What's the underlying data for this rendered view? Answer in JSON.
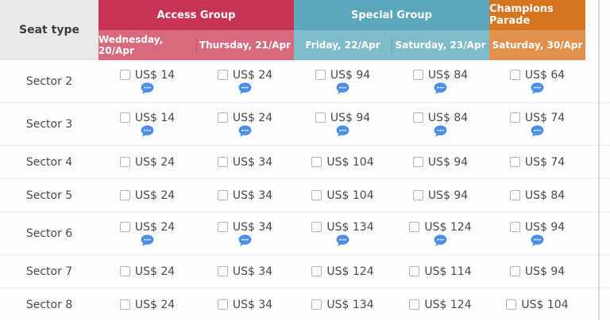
{
  "page": {
    "background": "#fdfdfd",
    "right_edge_line_color": "#dcdcdc"
  },
  "icons": {
    "comment_icon": "speech-bubble-ellipsis",
    "comment_icon_color": "#4a8ee8"
  },
  "table": {
    "seat_type_header": "Seat type",
    "seat_header_bg": "#e9e9e9",
    "text_color": "#4a4a4a",
    "groups": [
      {
        "label": "Access Group",
        "header_color": "#c73354",
        "subheader_color": "#d96a7e",
        "divider_color": "#c4516b",
        "dates": [
          "Wednesday, 20/Apr",
          "Thursday, 21/Apr"
        ]
      },
      {
        "label": "Special Group",
        "header_color": "#5ba7bc",
        "subheader_color": "#7fbccb",
        "divider_color": "#5f9fb3",
        "dates": [
          "Friday, 22/Apr",
          "Saturday, 23/Apr"
        ]
      },
      {
        "label": "Champions Parade",
        "header_color": "#d6751f",
        "subheader_color": "#e0914e",
        "dates": [
          "Saturday, 30/Apr"
        ]
      }
    ],
    "rows": [
      {
        "sector": "Sector 2",
        "prices": [
          "US$ 14",
          "US$ 24",
          "US$ 94",
          "US$ 84",
          "US$ 64"
        ],
        "note_icons": [
          true,
          true,
          true,
          true,
          true
        ]
      },
      {
        "sector": "Sector 3",
        "prices": [
          "US$ 14",
          "US$ 24",
          "US$ 94",
          "US$ 84",
          "US$ 74"
        ],
        "note_icons": [
          true,
          true,
          true,
          true,
          true
        ]
      },
      {
        "sector": "Sector 4",
        "prices": [
          "US$ 24",
          "US$ 34",
          "US$ 104",
          "US$ 94",
          "US$ 74"
        ],
        "note_icons": [
          false,
          false,
          false,
          false,
          false
        ]
      },
      {
        "sector": "Sector 5",
        "prices": [
          "US$ 24",
          "US$ 34",
          "US$ 104",
          "US$ 94",
          "US$ 84"
        ],
        "note_icons": [
          false,
          false,
          false,
          false,
          false
        ]
      },
      {
        "sector": "Sector 6",
        "prices": [
          "US$ 24",
          "US$ 34",
          "US$ 134",
          "US$ 124",
          "US$ 94"
        ],
        "note_icons": [
          true,
          true,
          true,
          true,
          true
        ]
      },
      {
        "sector": "Sector 7",
        "prices": [
          "US$ 24",
          "US$ 34",
          "US$ 124",
          "US$ 114",
          "US$ 94"
        ],
        "note_icons": [
          false,
          false,
          false,
          false,
          false
        ]
      },
      {
        "sector": "Sector 8",
        "prices": [
          "US$ 24",
          "US$ 34",
          "US$ 134",
          "US$ 124",
          "US$ 104"
        ],
        "note_icons": [
          false,
          false,
          false,
          false,
          false
        ]
      }
    ]
  }
}
